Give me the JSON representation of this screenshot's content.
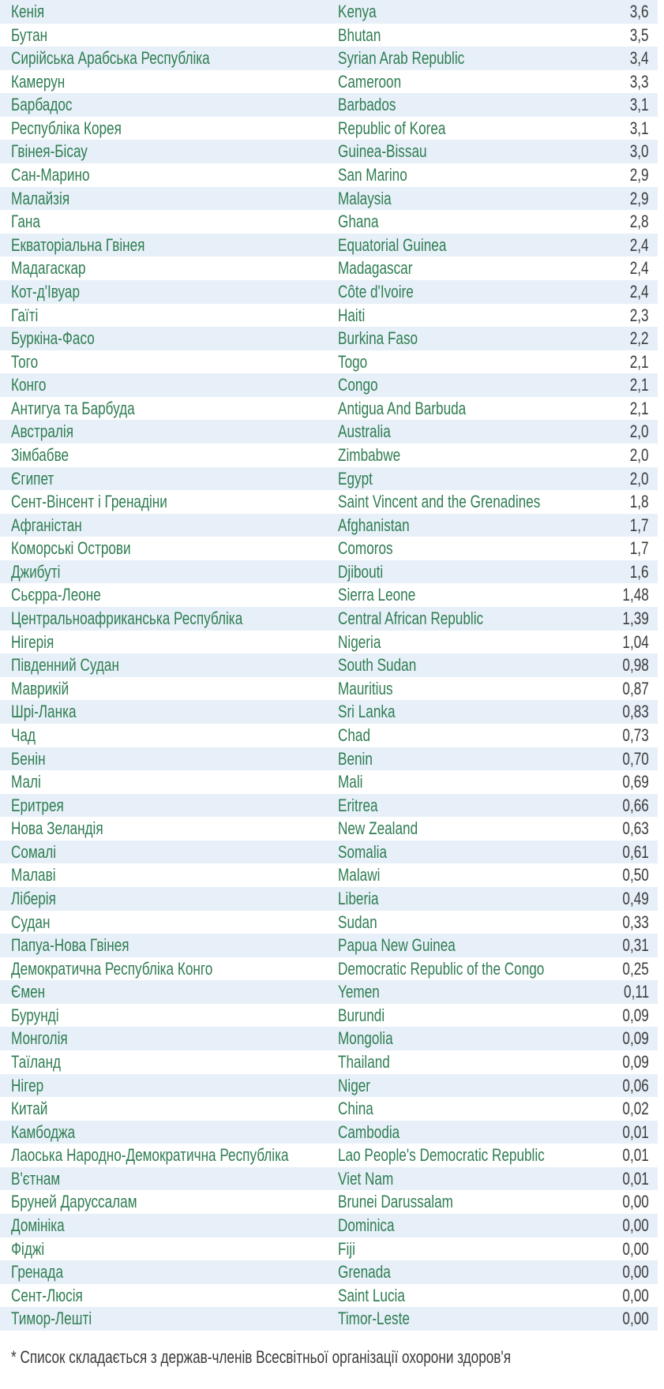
{
  "colors": {
    "name_green": "#2f7d52",
    "value_ink": "#3a3a3c",
    "row_alt_blue": "#e7f0f8"
  },
  "table": {
    "rows": [
      {
        "ua": "Кенія",
        "en": "Kenya",
        "value": "3,6"
      },
      {
        "ua": "Бутан",
        "en": "Bhutan",
        "value": "3,5"
      },
      {
        "ua": "Сирійська Арабська Республіка",
        "en": "Syrian Arab Republic",
        "value": "3,4"
      },
      {
        "ua": "Камерун",
        "en": "Cameroon",
        "value": "3,3"
      },
      {
        "ua": "Барбадос",
        "en": "Barbados",
        "value": "3,1"
      },
      {
        "ua": "Республіка Корея",
        "en": "Republic of Korea",
        "value": "3,1"
      },
      {
        "ua": "Гвінея-Бісау",
        "en": "Guinea-Bissau",
        "value": "3,0"
      },
      {
        "ua": "Сан-Марино",
        "en": "San Marino",
        "value": "2,9"
      },
      {
        "ua": "Малайзія",
        "en": "Malaysia",
        "value": "2,9"
      },
      {
        "ua": "Гана",
        "en": "Ghana",
        "value": "2,8"
      },
      {
        "ua": "Екваторіальна Гвінея",
        "en": "Equatorial Guinea",
        "value": "2,4"
      },
      {
        "ua": "Мадагаскар",
        "en": "Madagascar",
        "value": "2,4"
      },
      {
        "ua": "Кот-д'Івуар",
        "en": "Côte d'Ivoire",
        "value": "2,4"
      },
      {
        "ua": "Гаїті",
        "en": "Haiti",
        "value": "2,3"
      },
      {
        "ua": "Буркіна-Фасо",
        "en": "Burkina Faso",
        "value": "2,2"
      },
      {
        "ua": "Того",
        "en": "Togo",
        "value": "2,1"
      },
      {
        "ua": "Конго",
        "en": "Congo",
        "value": "2,1"
      },
      {
        "ua": "Антигуа та Барбуда",
        "en": "Antigua And Barbuda",
        "value": "2,1"
      },
      {
        "ua": "Австралія",
        "en": "Australia",
        "value": "2,0"
      },
      {
        "ua": "Зімбабве",
        "en": "Zimbabwe",
        "value": "2,0"
      },
      {
        "ua": "Єгипет",
        "en": "Egypt",
        "value": "2,0"
      },
      {
        "ua": "Сент-Вінсент і Гренадіни",
        "en": "Saint Vincent and the Grenadines",
        "value": "1,8"
      },
      {
        "ua": "Афганістан",
        "en": "Afghanistan",
        "value": "1,7"
      },
      {
        "ua": "Коморські Острови",
        "en": "Comoros",
        "value": "1,7"
      },
      {
        "ua": "Джибуті",
        "en": "Djibouti",
        "value": "1,6"
      },
      {
        "ua": "Сьєрра-Леоне",
        "en": "Sierra Leone",
        "value": "1,48"
      },
      {
        "ua": "Центральноафриканська Республіка",
        "en": "Central African Republic",
        "value": "1,39"
      },
      {
        "ua": "Нігерія",
        "en": "Nigeria",
        "value": "1,04"
      },
      {
        "ua": "Південний Судан",
        "en": "South Sudan",
        "value": "0,98"
      },
      {
        "ua": "Маврикій",
        "en": "Mauritius",
        "value": "0,87"
      },
      {
        "ua": "Шрі-Ланка",
        "en": "Sri Lanka",
        "value": "0,83"
      },
      {
        "ua": "Чад",
        "en": "Chad",
        "value": "0,73"
      },
      {
        "ua": "Бенін",
        "en": "Benin",
        "value": "0,70"
      },
      {
        "ua": "Малі",
        "en": "Mali",
        "value": "0,69"
      },
      {
        "ua": "Еритрея",
        "en": "Eritrea",
        "value": "0,66"
      },
      {
        "ua": "Нова Зеландія",
        "en": "New Zealand",
        "value": "0,63"
      },
      {
        "ua": "Сомалі",
        "en": "Somalia",
        "value": "0,61"
      },
      {
        "ua": "Малаві",
        "en": "Malawi",
        "value": "0,50"
      },
      {
        "ua": "Ліберія",
        "en": "Liberia",
        "value": "0,49"
      },
      {
        "ua": "Судан",
        "en": "Sudan",
        "value": "0,33"
      },
      {
        "ua": "Папуа-Нова Гвінея",
        "en": "Papua New Guinea",
        "value": "0,31"
      },
      {
        "ua": "Демократична Республіка Конго",
        "en": "Democratic Republic of the Congo",
        "value": "0,25"
      },
      {
        "ua": "Ємен",
        "en": "Yemen",
        "value": "0,11"
      },
      {
        "ua": "Бурунді",
        "en": "Burundi",
        "value": "0,09"
      },
      {
        "ua": "Монголія",
        "en": "Mongolia",
        "value": "0,09"
      },
      {
        "ua": "Таїланд",
        "en": "Thailand",
        "value": "0,09"
      },
      {
        "ua": "Нігер",
        "en": "Niger",
        "value": "0,06"
      },
      {
        "ua": "Китай",
        "en": "China",
        "value": "0,02"
      },
      {
        "ua": "Камбоджа",
        "en": "Cambodia",
        "value": "0,01"
      },
      {
        "ua": "Лаоська Народно-Демократична Республіка",
        "en": "Lao People's Democratic Republic",
        "value": "0,01"
      },
      {
        "ua": "В'єтнам",
        "en": "Viet Nam",
        "value": "0,01"
      },
      {
        "ua": "Бруней Даруссалам",
        "en": "Brunei Darussalam",
        "value": "0,00"
      },
      {
        "ua": "Домініка",
        "en": "Dominica",
        "value": "0,00"
      },
      {
        "ua": "Фіджі",
        "en": "Fiji",
        "value": "0,00"
      },
      {
        "ua": "Гренада",
        "en": "Grenada",
        "value": "0,00"
      },
      {
        "ua": "Сент-Люсія",
        "en": "Saint Lucia",
        "value": "0,00"
      },
      {
        "ua": "Тимор-Лешті",
        "en": "Timor-Leste",
        "value": "0,00"
      }
    ]
  },
  "footnote": "* Список складається з держав-членів Всесвітньої організації охорони здоров'я"
}
